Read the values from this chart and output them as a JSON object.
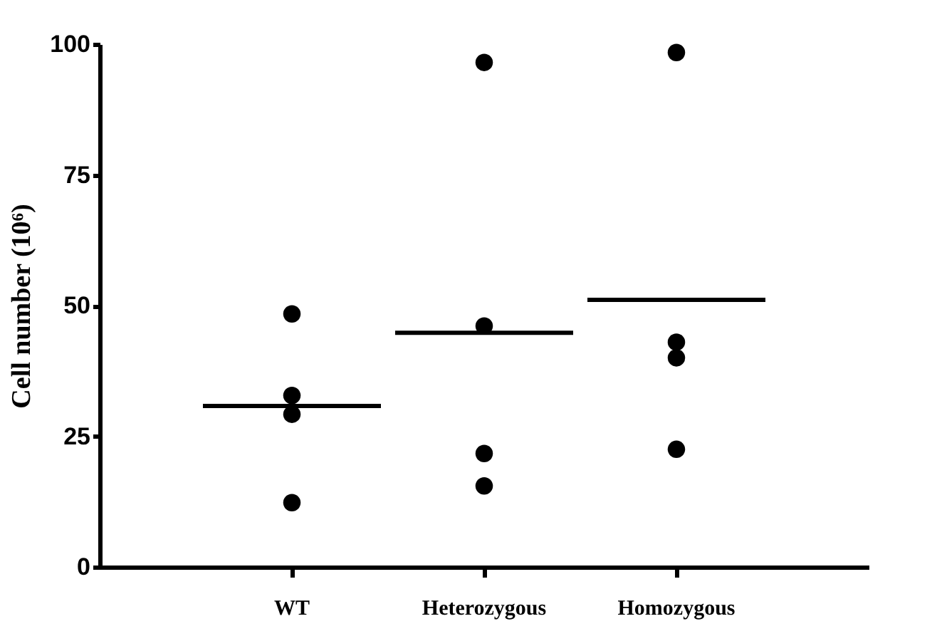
{
  "chart_data": {
    "type": "scatter",
    "ylabel": "Cell number (10⁶)",
    "categories": [
      "WT",
      "Heterozygous",
      "Homozygous"
    ],
    "series": [
      {
        "color": "#000000",
        "x": [
          "WT",
          "WT",
          "WT",
          "WT",
          "Heterozygous",
          "Heterozygous",
          "Heterozygous",
          "Heterozygous",
          "Homozygous",
          "Homozygous",
          "Homozygous",
          "Homozygous"
        ],
        "values": [
          48.4,
          32.8,
          29.2,
          12.3,
          96.5,
          46.1,
          21.7,
          15.5,
          98.4,
          43,
          40,
          22.5
        ]
      },
      {
        "type": "box",
        "color": "#000000",
        "boxes": [
          {
            "low": 30.8,
            "q1": 30.8,
            "median": 30.8,
            "q3": 30.8,
            "high": 30.8
          },
          {
            "low": 44.8,
            "q1": 44.8,
            "median": 44.8,
            "q3": 44.8,
            "high": 44.8
          },
          {
            "low": 51.1,
            "q1": 51.1,
            "median": 51.1,
            "q3": 51.1,
            "high": 51.1
          }
        ]
      }
    ],
    "ylim": [
      0,
      100
    ],
    "yticks": [
      0,
      25,
      50,
      75,
      100
    ],
    "grid": false,
    "marker": "circle"
  }
}
